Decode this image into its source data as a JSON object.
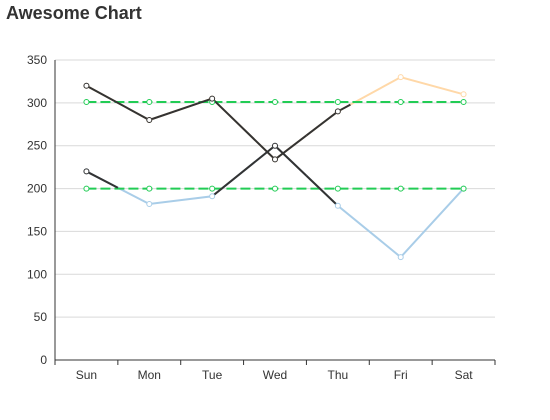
{
  "title": "Awesome Chart",
  "chart_data": {
    "type": "line",
    "title": "Awesome Chart",
    "categories": [
      "Sun",
      "Mon",
      "Tue",
      "Wed",
      "Thu",
      "Fri",
      "Sat"
    ],
    "ylim": [
      0,
      350
    ],
    "yticks": [
      0,
      50,
      100,
      150,
      200,
      250,
      300,
      350
    ],
    "grid": true,
    "legend": "none",
    "series": [
      {
        "values": [
          320,
          280,
          305,
          234,
          290,
          330,
          310
        ],
        "color": "#ffd8a8",
        "style": "solid"
      },
      {
        "values": [
          220,
          182,
          191,
          250,
          180,
          120,
          200
        ],
        "color": "#a9cde8",
        "style": "solid"
      },
      {
        "values": [
          301,
          301,
          301,
          301,
          301,
          301,
          301
        ],
        "color": "#22cc55",
        "style": "dashed"
      },
      {
        "values": [
          200,
          200,
          200,
          200,
          200,
          200,
          200
        ],
        "color": "#22cc55",
        "style": "dashed"
      }
    ],
    "highlight": {
      "color": "#333333",
      "segments": [
        {
          "series": 0,
          "from": 0,
          "to": 2
        },
        {
          "series": 0,
          "from": 2,
          "to": 3.5
        },
        {
          "series": 1,
          "from": 0,
          "to": 0.5
        },
        {
          "series": 1,
          "from": 2,
          "to": 3.5
        },
        {
          "series": 0,
          "from": 3.5,
          "to": 4.2
        },
        {
          "series": 1,
          "from": 3.5,
          "to": 4
        }
      ]
    }
  }
}
